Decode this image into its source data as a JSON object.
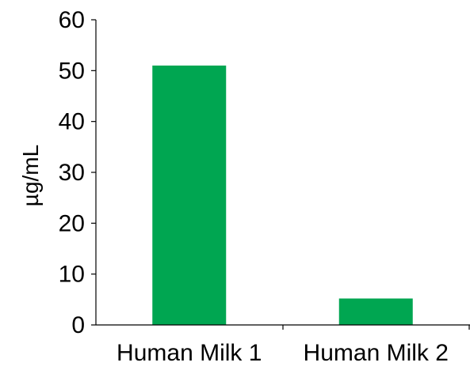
{
  "chart_data": {
    "type": "bar",
    "categories": [
      "Human Milk 1",
      "Human Milk 2"
    ],
    "values": [
      51,
      5.2
    ],
    "title": "",
    "xlabel": "",
    "ylabel": "µg/mL",
    "ylim": [
      0,
      60
    ],
    "yticks": [
      "0",
      "10",
      "20",
      "30",
      "40",
      "50",
      "60"
    ],
    "grid": false,
    "legend": "none",
    "bar_color": "#00a651"
  }
}
